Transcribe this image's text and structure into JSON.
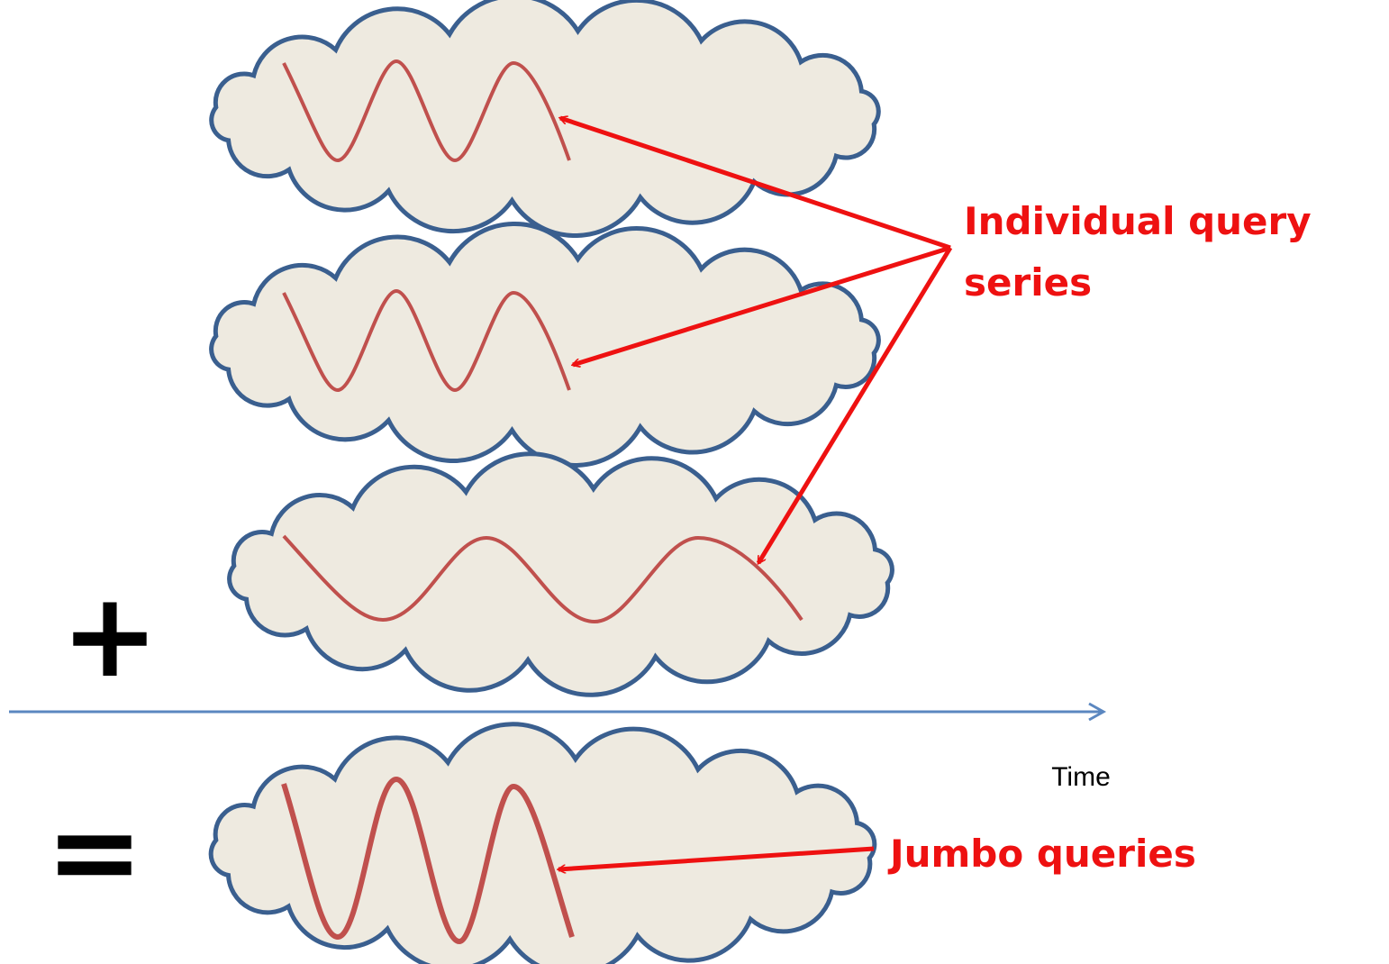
{
  "annotations": {
    "individual_query_series": {
      "lines": [
        "Individual query",
        "series"
      ]
    },
    "jumbo_queries": "Jumbo queries"
  },
  "axis": {
    "label": "Time"
  },
  "operators": {
    "plus": "+",
    "equals": "="
  }
}
